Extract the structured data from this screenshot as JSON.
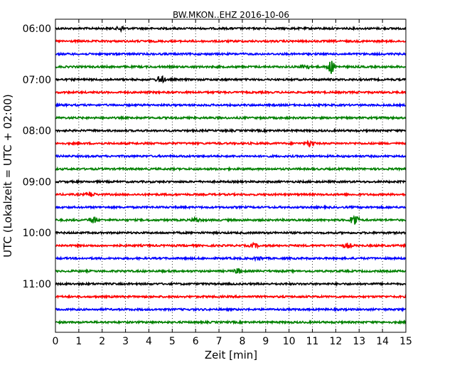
{
  "chart_data": {
    "type": "line",
    "title": "BW.MKON..EHZ 2016-10-06",
    "xlabel": "Zeit  [min]",
    "ylabel": "UTC (Lokalzeit = UTC + 02:00)",
    "xlim": [
      0,
      15
    ],
    "x_ticks": [
      "0",
      "1",
      "2",
      "3",
      "4",
      "5",
      "6",
      "7",
      "8",
      "9",
      "10",
      "11",
      "12",
      "13",
      "14",
      "15"
    ],
    "y_tick_labels": [
      "06:00",
      "07:00",
      "08:00",
      "09:00",
      "10:00",
      "11:00"
    ],
    "grid": "vertical dotted",
    "trace_start_times": [
      "06:00",
      "06:15",
      "06:30",
      "06:45",
      "07:00",
      "07:15",
      "07:30",
      "07:45",
      "08:00",
      "08:15",
      "08:30",
      "08:45",
      "09:00",
      "09:15",
      "09:30",
      "09:45",
      "10:00",
      "10:15",
      "10:30",
      "10:45",
      "11:00",
      "11:15",
      "11:30",
      "11:45"
    ],
    "trace_colors": [
      "#000000",
      "#ff0000",
      "#0000ff",
      "#008000"
    ],
    "events": [
      {
        "start": "06:00",
        "minute": 2.8,
        "amplitude": 0.35
      },
      {
        "start": "06:45",
        "minute": 11.8,
        "amplitude": 1.0
      },
      {
        "start": "06:45",
        "minute": 10.7,
        "amplitude": 0.4
      },
      {
        "start": "07:00",
        "minute": 4.5,
        "amplitude": 0.6
      },
      {
        "start": "08:15",
        "minute": 10.9,
        "amplitude": 0.4
      },
      {
        "start": "09:15",
        "minute": 1.5,
        "amplitude": 0.4
      },
      {
        "start": "09:45",
        "minute": 1.6,
        "amplitude": 0.55
      },
      {
        "start": "09:45",
        "minute": 6.0,
        "amplitude": 0.4
      },
      {
        "start": "09:45",
        "minute": 12.8,
        "amplitude": 1.0
      },
      {
        "start": "10:15",
        "minute": 12.5,
        "amplitude": 0.35
      },
      {
        "start": "10:15",
        "minute": 8.5,
        "amplitude": 0.3
      },
      {
        "start": "10:30",
        "minute": 8.7,
        "amplitude": 0.3
      },
      {
        "start": "10:45",
        "minute": 7.8,
        "amplitude": 0.35
      }
    ]
  }
}
